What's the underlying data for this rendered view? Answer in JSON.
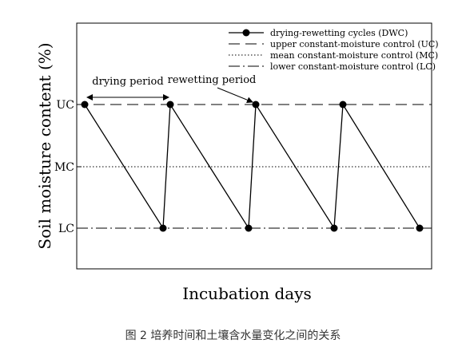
{
  "chart_data": {
    "type": "line",
    "xlabel": "Incubation days",
    "ylabel": "Soil moisture content (%)",
    "y_tick_labels": [
      "UC",
      "MC",
      "LC"
    ],
    "x_tick_labels": [],
    "grid": false,
    "legend_position": "top-right",
    "series": [
      {
        "name": "drying-rewetting cycles (DWC)",
        "style": "solid line with filled circle markers",
        "x": [
          0,
          1,
          1,
          2,
          2,
          3,
          3,
          4
        ],
        "y": [
          "UC",
          "LC",
          "UC",
          "LC",
          "UC",
          "LC",
          "UC",
          "LC"
        ]
      },
      {
        "name": "upper constant-moisture control (UC)",
        "style": "dashed",
        "y": "UC"
      },
      {
        "name": "mean constant-moisture control (MC)",
        "style": "dotted",
        "y": "MC"
      },
      {
        "name": "lower constant-moisture control (LC)",
        "style": "dash-dot",
        "y": "LC"
      }
    ],
    "annotations": [
      {
        "text": "drying period",
        "points_to": "segment from cycle start UC to next UC, double-headed arrow"
      },
      {
        "text": "rewetting period",
        "points_to": "rewetting step up to UC at start of cycle 3"
      }
    ]
  },
  "caption": "图 2 培养时间和土壤含水量变化之间的关系"
}
